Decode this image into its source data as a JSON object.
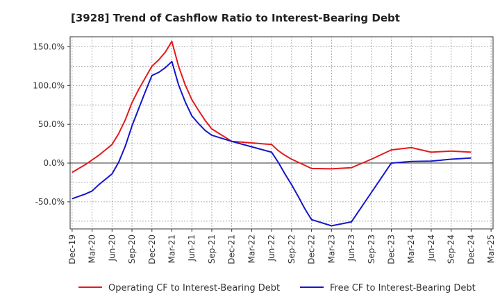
{
  "chart_data": {
    "type": "line",
    "title": "[3928]  Trend of Cashflow Ratio to Interest-Bearing Debt",
    "xlabel": "",
    "ylabel": "",
    "ylim": [
      -85,
      163
    ],
    "grid": true,
    "legend_position": "bottom",
    "x_ticks": [
      "Dec-19",
      "Mar-20",
      "Jun-20",
      "Sep-20",
      "Dec-20",
      "Mar-21",
      "Jun-21",
      "Sep-21",
      "Dec-21",
      "Mar-22",
      "Jun-22",
      "Sep-22",
      "Dec-22",
      "Mar-23",
      "Jun-23",
      "Sep-23",
      "Dec-23",
      "Mar-24",
      "Jun-24",
      "Sep-24",
      "Dec-24",
      "Mar-25"
    ],
    "y_ticks": [
      150,
      100,
      50,
      0,
      -50
    ],
    "y_tick_labels": [
      "150.0%",
      "100.0%",
      "50.0%",
      "0.0%",
      "-50.0%"
    ],
    "series": [
      {
        "name": "Operating CF to Interest-Bearing Debt",
        "color": "#e31a1c",
        "points": [
          [
            "Dec-19",
            -12
          ],
          [
            "Jan-20",
            -7
          ],
          [
            "Feb-20",
            -2
          ],
          [
            "Mar-20",
            4
          ],
          [
            "Apr-20",
            10
          ],
          [
            "May-20",
            17
          ],
          [
            "Jun-20",
            24
          ],
          [
            "Jul-20",
            38
          ],
          [
            "Aug-20",
            56
          ],
          [
            "Sep-20",
            78
          ],
          [
            "Oct-20",
            95
          ],
          [
            "Nov-20",
            110
          ],
          [
            "Dec-20",
            125
          ],
          [
            "Jan-21",
            133
          ],
          [
            "Feb-21",
            143
          ],
          [
            "Mar-21",
            157
          ],
          [
            "Apr-21",
            125
          ],
          [
            "May-21",
            101
          ],
          [
            "Jun-21",
            82
          ],
          [
            "Jul-21",
            68
          ],
          [
            "Aug-21",
            55
          ],
          [
            "Sep-21",
            44
          ],
          [
            "Dec-21",
            28
          ],
          [
            "Mar-22",
            26
          ],
          [
            "Jun-22",
            24
          ],
          [
            "Jul-22",
            16
          ],
          [
            "Aug-22",
            10
          ],
          [
            "Sep-22",
            5
          ],
          [
            "Oct-22",
            1
          ],
          [
            "Nov-22",
            -3
          ],
          [
            "Dec-22",
            -7
          ],
          [
            "Mar-23",
            -7.5
          ],
          [
            "Jun-23",
            -6
          ],
          [
            "Sep-23",
            5
          ],
          [
            "Dec-23",
            17
          ],
          [
            "Mar-24",
            20
          ],
          [
            "Apr-24",
            18
          ],
          [
            "Jun-24",
            14
          ],
          [
            "Sep-24",
            15.5
          ],
          [
            "Dec-24",
            14
          ]
        ]
      },
      {
        "name": "Free CF to Interest-Bearing Debt",
        "color": "#1515cc",
        "points": [
          [
            "Dec-19",
            -46
          ],
          [
            "Jan-20",
            -43
          ],
          [
            "Feb-20",
            -40
          ],
          [
            "Mar-20",
            -36
          ],
          [
            "Apr-20",
            -28
          ],
          [
            "May-20",
            -21
          ],
          [
            "Jun-20",
            -14
          ],
          [
            "Jul-20",
            1
          ],
          [
            "Aug-20",
            22
          ],
          [
            "Sep-20",
            48
          ],
          [
            "Oct-20",
            70
          ],
          [
            "Nov-20",
            92
          ],
          [
            "Dec-20",
            113
          ],
          [
            "Jan-21",
            117
          ],
          [
            "Feb-21",
            123
          ],
          [
            "Mar-21",
            131
          ],
          [
            "Apr-21",
            101
          ],
          [
            "May-21",
            79
          ],
          [
            "Jun-21",
            61
          ],
          [
            "Jul-21",
            51
          ],
          [
            "Aug-21",
            42
          ],
          [
            "Sep-21",
            36
          ],
          [
            "Dec-21",
            28
          ],
          [
            "Mar-22",
            21
          ],
          [
            "Jun-22",
            14
          ],
          [
            "Jul-22",
            1
          ],
          [
            "Aug-22",
            -14
          ],
          [
            "Sep-22",
            -28
          ],
          [
            "Oct-22",
            -43
          ],
          [
            "Nov-22",
            -59
          ],
          [
            "Dec-22",
            -73
          ],
          [
            "Mar-23",
            -81
          ],
          [
            "Jun-23",
            -76
          ],
          [
            "Sep-23",
            -38
          ],
          [
            "Dec-23",
            0
          ],
          [
            "Mar-24",
            2
          ],
          [
            "Jun-24",
            2.5
          ],
          [
            "Sep-24",
            5
          ],
          [
            "Dec-24",
            6.5
          ]
        ]
      }
    ]
  }
}
